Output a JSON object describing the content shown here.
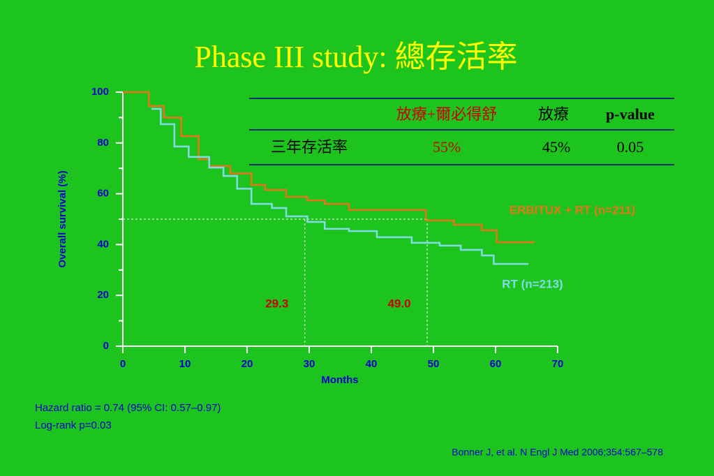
{
  "chart_data": {
    "type": "line",
    "step": true,
    "title": "Phase III study: 總存活率",
    "x_label": "Months",
    "y_label": "Overall survival (%)",
    "xlim": [
      0,
      70
    ],
    "xticks": [
      0,
      10,
      20,
      30,
      40,
      50,
      60,
      70
    ],
    "ylim": [
      0,
      100
    ],
    "yticks": [
      0,
      20,
      40,
      60,
      80,
      100
    ],
    "minor_yticks": [
      10,
      30,
      50,
      70,
      90
    ],
    "series": [
      {
        "name": "ERBITUX + RT (n=211)",
        "color": "#e8741a",
        "x": [
          0,
          4.2,
          6.6,
          9.4,
          12.2,
          13.9,
          17.3,
          20.7,
          22.9,
          26.3,
          29.7,
          32.5,
          36.4,
          45.4,
          48.8,
          53.3,
          57.8,
          60.2,
          66.3
        ],
        "values": [
          100,
          94.5,
          90,
          82.7,
          73.6,
          70.9,
          68,
          63.5,
          61.5,
          58.8,
          57.4,
          56,
          53.6,
          53.6,
          49.5,
          47.8,
          45.6,
          40.9,
          40.9
        ]
      },
      {
        "name": "RT (n=213)",
        "color": "#80dce6",
        "x": [
          4.6,
          6.1,
          8.3,
          10.6,
          13.9,
          16.2,
          18.4,
          20.7,
          24,
          26.3,
          29.7,
          32.5,
          36.4,
          40.9,
          46.5,
          51,
          54.4,
          57.8,
          59.7,
          65.3
        ],
        "values": [
          93.4,
          87.4,
          78.6,
          74.5,
          70.3,
          67,
          62,
          56,
          54.4,
          51.1,
          48.9,
          46.2,
          45.3,
          42.9,
          40.7,
          39.6,
          37.9,
          35.7,
          32.4,
          32.4
        ]
      }
    ],
    "median_y": 50,
    "medians": [
      {
        "value": 29.3,
        "label": "29.3"
      },
      {
        "value": 49,
        "label": "49.0"
      }
    ]
  },
  "table": {
    "header": [
      "放療+爾必得舒",
      "放療",
      "p-value"
    ],
    "rows": [
      [
        "三年存活率",
        "55%",
        "45%",
        "0.05"
      ]
    ]
  },
  "footnotes": [
    "Hazard ratio = 0.74 (95% CI: 0.57–0.97)",
    "Log-rank p=0.03"
  ],
  "citation": "Bonner J, et al. N Engl J Med 2006;354:567–578"
}
